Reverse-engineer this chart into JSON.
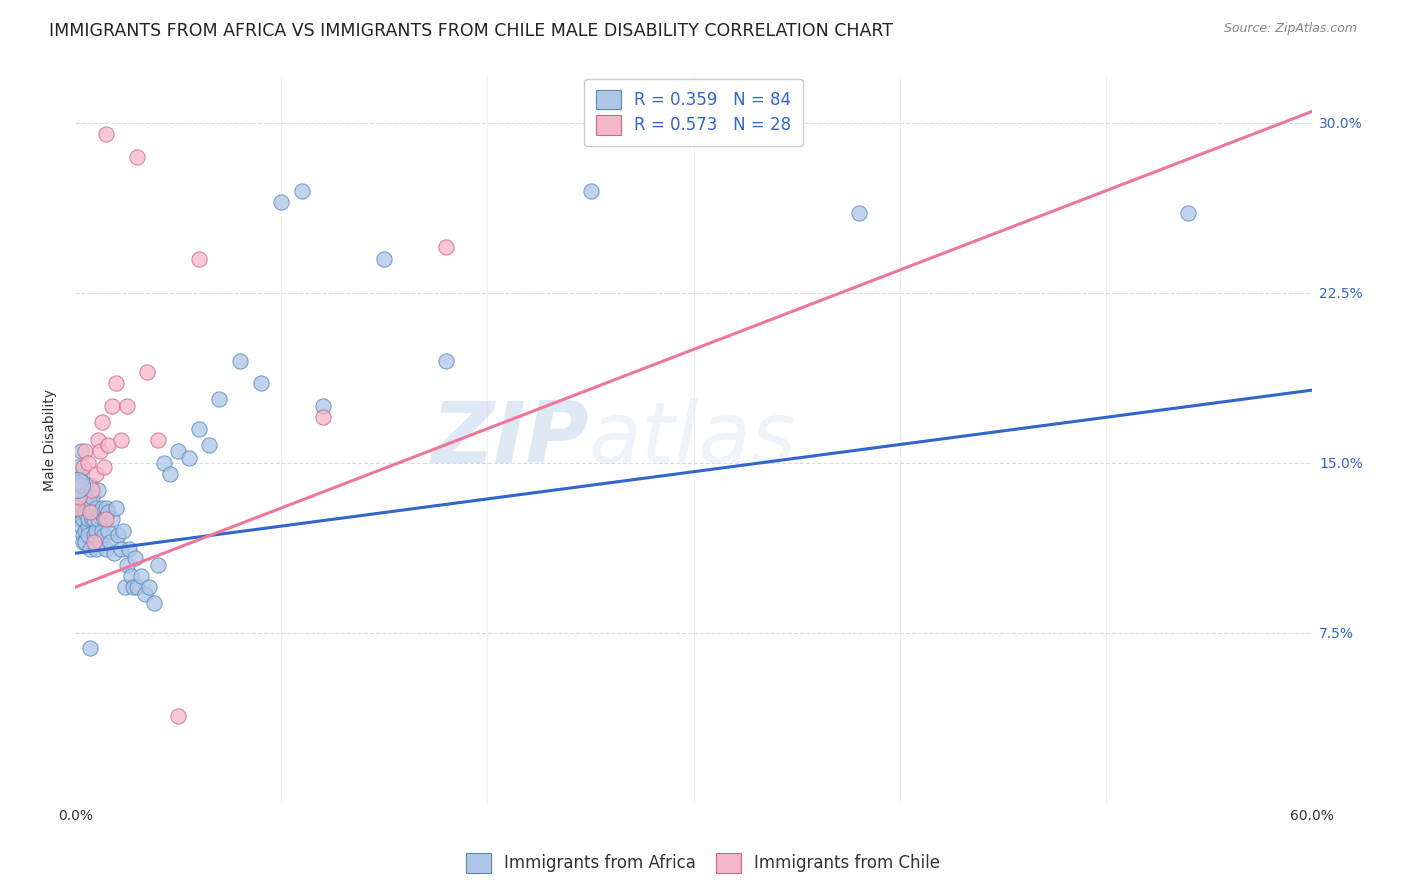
{
  "title": "IMMIGRANTS FROM AFRICA VS IMMIGRANTS FROM CHILE MALE DISABILITY CORRELATION CHART",
  "source": "Source: ZipAtlas.com",
  "xlabel": "",
  "ylabel": "Male Disability",
  "xlim": [
    0.0,
    0.6
  ],
  "ylim": [
    0.0,
    0.32
  ],
  "xticks": [
    0.0,
    0.1,
    0.2,
    0.3,
    0.4,
    0.5,
    0.6
  ],
  "xticklabels": [
    "0.0%",
    "",
    "",
    "",
    "",
    "",
    "60.0%"
  ],
  "yticks": [
    0.0,
    0.075,
    0.15,
    0.225,
    0.3
  ],
  "yticklabels": [
    "",
    "7.5%",
    "15.0%",
    "22.5%",
    "30.0%"
  ],
  "grid_color": "#cccccc",
  "background_color": "#ffffff",
  "africa_color": "#aec6e8",
  "africa_edge": "#5588bb",
  "chile_color": "#f5b8c8",
  "chile_edge": "#cc6688",
  "africa_R": 0.359,
  "africa_N": 84,
  "chile_R": 0.573,
  "chile_N": 28,
  "africa_line_color": "#3366cc",
  "chile_line_color": "#ee7799",
  "legend_label_africa": "Immigrants from Africa",
  "legend_label_chile": "Immigrants from Chile",
  "africa_scatter_x": [
    0.001,
    0.001,
    0.002,
    0.002,
    0.002,
    0.002,
    0.003,
    0.003,
    0.003,
    0.003,
    0.004,
    0.004,
    0.004,
    0.004,
    0.005,
    0.005,
    0.005,
    0.005,
    0.006,
    0.006,
    0.006,
    0.006,
    0.007,
    0.007,
    0.007,
    0.008,
    0.008,
    0.008,
    0.009,
    0.009,
    0.01,
    0.01,
    0.01,
    0.011,
    0.011,
    0.012,
    0.012,
    0.013,
    0.013,
    0.014,
    0.014,
    0.015,
    0.015,
    0.016,
    0.016,
    0.017,
    0.018,
    0.019,
    0.02,
    0.021,
    0.022,
    0.023,
    0.024,
    0.025,
    0.026,
    0.027,
    0.028,
    0.029,
    0.03,
    0.032,
    0.034,
    0.036,
    0.038,
    0.04,
    0.043,
    0.046,
    0.05,
    0.055,
    0.06,
    0.065,
    0.07,
    0.08,
    0.09,
    0.1,
    0.11,
    0.12,
    0.15,
    0.18,
    0.25,
    0.38,
    0.54,
    0.001,
    0.003,
    0.007
  ],
  "africa_scatter_y": [
    0.14,
    0.135,
    0.13,
    0.125,
    0.145,
    0.138,
    0.128,
    0.122,
    0.132,
    0.142,
    0.118,
    0.13,
    0.125,
    0.115,
    0.12,
    0.128,
    0.135,
    0.115,
    0.122,
    0.13,
    0.125,
    0.118,
    0.132,
    0.14,
    0.112,
    0.125,
    0.128,
    0.135,
    0.118,
    0.125,
    0.13,
    0.12,
    0.112,
    0.125,
    0.138,
    0.128,
    0.115,
    0.12,
    0.13,
    0.125,
    0.118,
    0.112,
    0.13,
    0.12,
    0.128,
    0.115,
    0.125,
    0.11,
    0.13,
    0.118,
    0.112,
    0.12,
    0.095,
    0.105,
    0.112,
    0.1,
    0.095,
    0.108,
    0.095,
    0.1,
    0.092,
    0.095,
    0.088,
    0.105,
    0.15,
    0.145,
    0.155,
    0.152,
    0.165,
    0.158,
    0.178,
    0.195,
    0.185,
    0.265,
    0.27,
    0.175,
    0.24,
    0.195,
    0.27,
    0.26,
    0.26,
    0.148,
    0.155,
    0.068
  ],
  "chile_scatter_x": [
    0.001,
    0.002,
    0.003,
    0.004,
    0.005,
    0.006,
    0.007,
    0.008,
    0.009,
    0.01,
    0.011,
    0.012,
    0.013,
    0.014,
    0.015,
    0.016,
    0.018,
    0.02,
    0.022,
    0.025,
    0.03,
    0.035,
    0.04,
    0.05,
    0.06,
    0.12,
    0.18,
    0.015
  ],
  "chile_scatter_y": [
    0.13,
    0.135,
    0.14,
    0.148,
    0.155,
    0.15,
    0.128,
    0.138,
    0.115,
    0.145,
    0.16,
    0.155,
    0.168,
    0.148,
    0.125,
    0.158,
    0.175,
    0.185,
    0.16,
    0.175,
    0.285,
    0.19,
    0.16,
    0.038,
    0.24,
    0.17,
    0.245,
    0.295
  ],
  "africa_line_x0": 0.0,
  "africa_line_y0": 0.11,
  "africa_line_x1": 0.6,
  "africa_line_y1": 0.182,
  "chile_line_x0": 0.0,
  "chile_line_y0": 0.095,
  "chile_line_x1": 0.6,
  "chile_line_y1": 0.305,
  "watermark_text": "ZIP",
  "watermark_text2": "atlas",
  "title_fontsize": 12.5,
  "axis_label_fontsize": 10,
  "tick_fontsize": 10,
  "legend_fontsize": 12
}
